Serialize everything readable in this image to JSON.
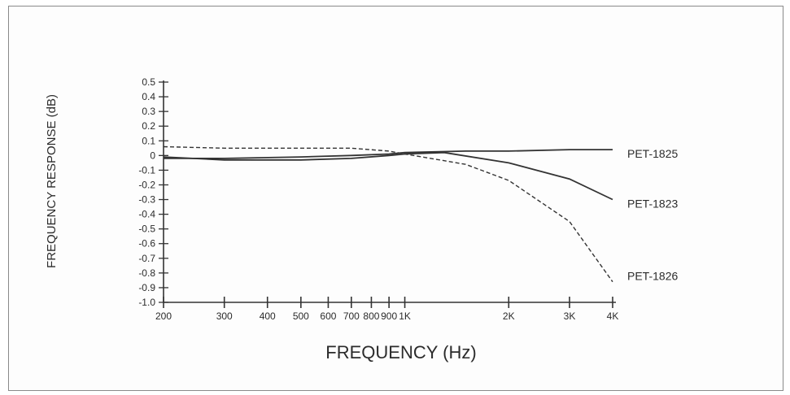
{
  "chart_data": {
    "type": "line",
    "title": "",
    "xlabel": "FREQUENCY (Hz)",
    "ylabel": "FREQUENCY RESPONSE (dB)",
    "x_scale": "log",
    "xlim": [
      200,
      4000
    ],
    "ylim": [
      -1.0,
      0.5
    ],
    "x_ticks": [
      200,
      300,
      400,
      500,
      600,
      700,
      800,
      900,
      1000,
      2000,
      3000,
      4000
    ],
    "x_tick_labels": [
      "200",
      "300",
      "400",
      "500",
      "600",
      "700",
      "800",
      "900",
      "1K",
      "2K",
      "3K",
      "4K"
    ],
    "y_ticks": [
      0.5,
      0.4,
      0.3,
      0.2,
      0.1,
      0,
      -0.1,
      -0.2,
      -0.3,
      -0.4,
      -0.5,
      -0.6,
      -0.7,
      -0.8,
      -0.9,
      -1.0
    ],
    "y_tick_labels": [
      "0.5",
      "0.4",
      "0.3",
      "0.2",
      "0.1",
      "0",
      "-0.1",
      "-0.2",
      "-0.3",
      "-0.4",
      "-0.5",
      "-0.6",
      "-0.7",
      "-0.8",
      "-0.9",
      "-1.0"
    ],
    "grid": false,
    "series": [
      {
        "name": "PET-1825",
        "style": "solid",
        "x": [
          200,
          300,
          500,
          700,
          900,
          1000,
          1500,
          2000,
          3000,
          4000
        ],
        "y": [
          -0.02,
          -0.02,
          -0.01,
          0.0,
          0.01,
          0.02,
          0.03,
          0.03,
          0.04,
          0.04
        ]
      },
      {
        "name": "PET-1823",
        "style": "solid",
        "x": [
          200,
          300,
          500,
          700,
          900,
          1000,
          1300,
          2000,
          3000,
          4000
        ],
        "y": [
          -0.01,
          -0.03,
          -0.03,
          -0.02,
          0.0,
          0.01,
          0.02,
          -0.05,
          -0.16,
          -0.3
        ]
      },
      {
        "name": "PET-1826",
        "style": "dashed",
        "x": [
          200,
          300,
          500,
          700,
          900,
          1000,
          1500,
          2000,
          3000,
          4000
        ],
        "y": [
          0.06,
          0.05,
          0.05,
          0.05,
          0.03,
          0.01,
          -0.06,
          -0.17,
          -0.45,
          -0.86
        ]
      }
    ],
    "color": "#333333"
  }
}
